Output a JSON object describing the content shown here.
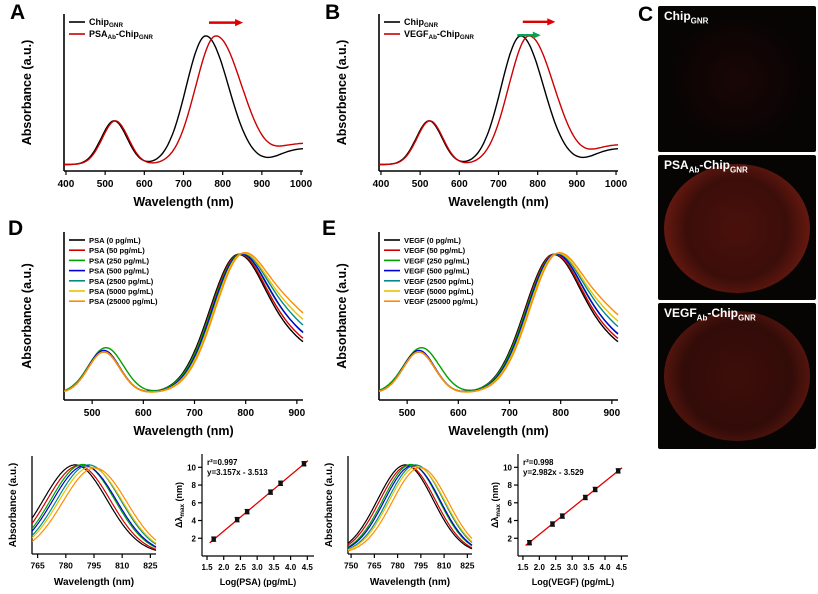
{
  "panel_labels": [
    "A",
    "B",
    "C",
    "D",
    "E"
  ],
  "panel_c": {
    "images": [
      {
        "label": "Chip_{GNR}"
      },
      {
        "label": "PSA_{Ab}-Chip_{GNR}"
      },
      {
        "label": "VEGF_{Ab}-Chip_{GNR}"
      }
    ]
  },
  "chart_data": [
    {
      "id": "A",
      "type": "line",
      "kind": "spectrum",
      "xlabel": "Wavelength (nm)",
      "ylabel": "Absorbance (a.u.)",
      "xlim": [
        395,
        1005
      ],
      "xticks": [
        400,
        500,
        600,
        700,
        800,
        900,
        1000
      ],
      "ylim": [
        0,
        1.22
      ],
      "tail_center": 940,
      "series": [
        {
          "name": "Chip_{GNR}",
          "color": "#000000",
          "small_peak": 523,
          "small_amp": 0.34,
          "small_w": 33,
          "lspr_peak": 757,
          "amp": 1.0,
          "wl": 50,
          "wr": 58,
          "tail": 0.13
        },
        {
          "name": "PSA_{Ab}-Chip_{GNR}",
          "color": "#cc0000",
          "small_peak": 526,
          "small_amp": 0.34,
          "small_w": 33,
          "lspr_peak": 783,
          "amp": 1.0,
          "wl": 52,
          "wr": 66,
          "tail": 0.17
        }
      ],
      "arrows": [
        {
          "x1": 765,
          "x2": 852,
          "yfrac": 0.055,
          "color": "#dd0000"
        }
      ]
    },
    {
      "id": "B",
      "type": "line",
      "kind": "spectrum",
      "xlabel": "Wavelength (nm)",
      "ylabel": "Absorbence (a.u.)",
      "xlim": [
        395,
        1005
      ],
      "xticks": [
        400,
        500,
        600,
        700,
        800,
        900,
        1000
      ],
      "ylim": [
        0,
        1.22
      ],
      "tail_center": 940,
      "series": [
        {
          "name": "Chip_{GNR}",
          "color": "#000000",
          "small_peak": 523,
          "small_amp": 0.34,
          "small_w": 33,
          "lspr_peak": 757,
          "amp": 1.0,
          "wl": 50,
          "wr": 58,
          "tail": 0.13
        },
        {
          "name": "VEGF_{Ab}-Chip_{GNR}",
          "color": "#cc0000",
          "small_peak": 525,
          "small_amp": 0.34,
          "small_w": 33,
          "lspr_peak": 778,
          "amp": 1.0,
          "wl": 52,
          "wr": 64,
          "tail": 0.16
        }
      ],
      "arrows": [
        {
          "x1": 762,
          "x2": 845,
          "yfrac": 0.05,
          "color": "#dd0000"
        },
        {
          "x1": 748,
          "x2": 808,
          "yfrac": 0.135,
          "color": "#00a651"
        }
      ]
    },
    {
      "id": "D",
      "type": "line",
      "kind": "spectrum",
      "xlabel": "Wavelength (nm)",
      "ylabel": "Absorbance (a.u.)",
      "xlim": [
        445,
        912
      ],
      "xticks": [
        500,
        600,
        700,
        800,
        900
      ],
      "ylim": [
        0,
        1.22
      ],
      "tail_center": 865,
      "series": [
        {
          "name": "PSA (0 pg/mL)",
          "color": "#000000",
          "small_peak": 523,
          "small_amp": 0.3,
          "small_w": 31,
          "lspr_peak": 785.0,
          "amp": 1.0,
          "wl": 55,
          "wr": 62,
          "tail": 0.28
        },
        {
          "name": "PSA (50 pg/mL)",
          "color": "#d40000",
          "small_peak": 523,
          "small_amp": 0.3,
          "small_w": 31,
          "lspr_peak": 786.8,
          "amp": 1.0,
          "wl": 55,
          "wr": 62,
          "tail": 0.3
        },
        {
          "name": "PSA (250 pg/mL)",
          "color": "#00a000",
          "small_peak": 527,
          "small_amp": 0.33,
          "small_w": 34,
          "lspr_peak": 789.0,
          "amp": 1.0,
          "wl": 56,
          "wr": 62,
          "tail": 0.34
        },
        {
          "name": "PSA (500 pg/mL)",
          "color": "#0000d4",
          "small_peak": 523,
          "small_amp": 0.31,
          "small_w": 31,
          "lspr_peak": 790.0,
          "amp": 1.0,
          "wl": 55,
          "wr": 62,
          "tail": 0.33
        },
        {
          "name": "PSA (2500 pg/mL)",
          "color": "#008b8b",
          "small_peak": 523,
          "small_amp": 0.3,
          "small_w": 31,
          "lspr_peak": 792.2,
          "amp": 1.0,
          "wl": 55,
          "wr": 62,
          "tail": 0.38
        },
        {
          "name": "PSA (5000 pg/mL)",
          "color": "#e6c400",
          "small_peak": 523,
          "small_amp": 0.3,
          "small_w": 31,
          "lspr_peak": 793.2,
          "amp": 1.0,
          "wl": 55,
          "wr": 62,
          "tail": 0.42
        },
        {
          "name": "PSA (25000 pg/mL)",
          "color": "#ff8c00",
          "small_peak": 523,
          "small_amp": 0.3,
          "small_w": 31,
          "lspr_peak": 795.4,
          "amp": 1.0,
          "wl": 55,
          "wr": 62,
          "tail": 0.46
        }
      ]
    },
    {
      "id": "E",
      "type": "line",
      "kind": "spectrum",
      "xlabel": "Wavelength (nm)",
      "ylabel": "Absorbance (a.u.)",
      "xlim": [
        445,
        912
      ],
      "xticks": [
        500,
        600,
        700,
        800,
        900
      ],
      "ylim": [
        0,
        1.22
      ],
      "tail_center": 865,
      "series": [
        {
          "name": "VEGF (0 pg/mL)",
          "color": "#000000",
          "small_peak": 523,
          "small_amp": 0.3,
          "small_w": 31,
          "lspr_peak": 785.0,
          "amp": 1.0,
          "wl": 55,
          "wr": 62,
          "tail": 0.28
        },
        {
          "name": "VEGF (50 pg/mL)",
          "color": "#d40000",
          "small_peak": 523,
          "small_amp": 0.3,
          "small_w": 31,
          "lspr_peak": 786.5,
          "amp": 1.0,
          "wl": 55,
          "wr": 62,
          "tail": 0.3
        },
        {
          "name": "VEGF (250 pg/mL)",
          "color": "#00a000",
          "small_peak": 528,
          "small_amp": 0.33,
          "small_w": 35,
          "lspr_peak": 788.6,
          "amp": 1.0,
          "wl": 56,
          "wr": 62,
          "tail": 0.33
        },
        {
          "name": "VEGF (500 pg/mL)",
          "color": "#0000d4",
          "small_peak": 523,
          "small_amp": 0.31,
          "small_w": 31,
          "lspr_peak": 789.5,
          "amp": 1.0,
          "wl": 55,
          "wr": 62,
          "tail": 0.32
        },
        {
          "name": "VEGF (2500 pg/mL)",
          "color": "#008b8b",
          "small_peak": 523,
          "small_amp": 0.3,
          "small_w": 31,
          "lspr_peak": 791.6,
          "amp": 1.0,
          "wl": 55,
          "wr": 62,
          "tail": 0.37
        },
        {
          "name": "VEGF (5000 pg/mL)",
          "color": "#e6c400",
          "small_peak": 523,
          "small_amp": 0.3,
          "small_w": 31,
          "lspr_peak": 792.5,
          "amp": 1.0,
          "wl": 55,
          "wr": 62,
          "tail": 0.41
        },
        {
          "name": "VEGF (25000 pg/mL)",
          "color": "#ff8c00",
          "small_peak": 523,
          "small_amp": 0.3,
          "small_w": 31,
          "lspr_peak": 794.6,
          "amp": 1.0,
          "wl": 55,
          "wr": 62,
          "tail": 0.45
        }
      ]
    },
    {
      "id": "D_inset",
      "type": "line",
      "kind": "inset",
      "xlabel": "Wavelength (nm)",
      "ylabel": "Absorbance (a.u.)",
      "xlim": [
        762,
        828
      ],
      "xticks": [
        765,
        780,
        795,
        810,
        825
      ],
      "ylim": [
        0,
        1.1
      ],
      "series": [
        {
          "color": "#000000",
          "lspr_peak": 785.0,
          "amp": 1.0,
          "w": 17
        },
        {
          "color": "#d40000",
          "lspr_peak": 786.8,
          "amp": 0.99,
          "w": 17
        },
        {
          "color": "#00a000",
          "lspr_peak": 789.0,
          "amp": 1.005,
          "w": 17
        },
        {
          "color": "#0000d4",
          "lspr_peak": 790.0,
          "amp": 0.99,
          "w": 17
        },
        {
          "color": "#008b8b",
          "lspr_peak": 792.2,
          "amp": 1.0,
          "w": 17
        },
        {
          "color": "#e6c400",
          "lspr_peak": 793.2,
          "amp": 0.975,
          "w": 17
        },
        {
          "color": "#ff8c00",
          "lspr_peak": 795.4,
          "amp": 0.965,
          "w": 17
        }
      ]
    },
    {
      "id": "D_cal",
      "type": "scatter",
      "kind": "cal",
      "xlabel": "Log(PSA) (pg/mL)",
      "ylabel": "Δλ_{max} (nm)",
      "xlim": [
        1.35,
        4.7
      ],
      "xticks": [
        1.5,
        2.0,
        2.5,
        3.0,
        3.5,
        4.0,
        4.5
      ],
      "xtick_decimals": 1,
      "ylim": [
        0,
        11.5
      ],
      "yticks": [
        2,
        4,
        6,
        8,
        10
      ],
      "points": {
        "x": [
          1.7,
          2.4,
          2.7,
          3.4,
          3.7,
          4.4
        ],
        "y": [
          1.9,
          4.1,
          5.0,
          7.2,
          8.2,
          10.4
        ],
        "yerr": 0.25
      },
      "fit": {
        "slope": 3.157,
        "intercept": -3.513
      },
      "annotation": [
        "r²=0.997",
        "y=3.157x - 3.513"
      ]
    },
    {
      "id": "E_inset",
      "type": "line",
      "kind": "inset",
      "xlabel": "Wavelength (nm)",
      "ylabel": "Absorbance (a.u.)",
      "xlim": [
        748,
        828
      ],
      "xticks": [
        750,
        765,
        780,
        795,
        810,
        825
      ],
      "ylim": [
        0,
        1.1
      ],
      "series": [
        {
          "color": "#000000",
          "lspr_peak": 785.0,
          "amp": 1.0,
          "w": 18
        },
        {
          "color": "#d40000",
          "lspr_peak": 786.5,
          "amp": 0.99,
          "w": 18
        },
        {
          "color": "#00a000",
          "lspr_peak": 788.6,
          "amp": 1.005,
          "w": 18
        },
        {
          "color": "#0000d4",
          "lspr_peak": 789.5,
          "amp": 0.99,
          "w": 18
        },
        {
          "color": "#008b8b",
          "lspr_peak": 791.6,
          "amp": 1.0,
          "w": 18
        },
        {
          "color": "#e6c400",
          "lspr_peak": 792.5,
          "amp": 0.98,
          "w": 18
        },
        {
          "color": "#ff8c00",
          "lspr_peak": 794.6,
          "amp": 0.97,
          "w": 18
        }
      ]
    },
    {
      "id": "E_cal",
      "type": "scatter",
      "kind": "cal",
      "xlabel": "Log(VEGF) (pg/mL)",
      "ylabel": "Δλ_{max} (nm)",
      "xlim": [
        1.35,
        4.7
      ],
      "xticks": [
        1.5,
        2.0,
        2.5,
        3.0,
        3.5,
        4.0,
        4.5
      ],
      "xtick_decimals": 1,
      "ylim": [
        0,
        11.5
      ],
      "yticks": [
        2,
        4,
        6,
        8,
        10
      ],
      "points": {
        "x": [
          1.7,
          2.4,
          2.7,
          3.4,
          3.7,
          4.4
        ],
        "y": [
          1.5,
          3.6,
          4.5,
          6.6,
          7.5,
          9.6
        ],
        "yerr": 0.25
      },
      "fit": {
        "slope": 2.982,
        "intercept": -3.529
      },
      "annotation": [
        "r²=0.998",
        "y=2.982x - 3.529"
      ]
    }
  ]
}
